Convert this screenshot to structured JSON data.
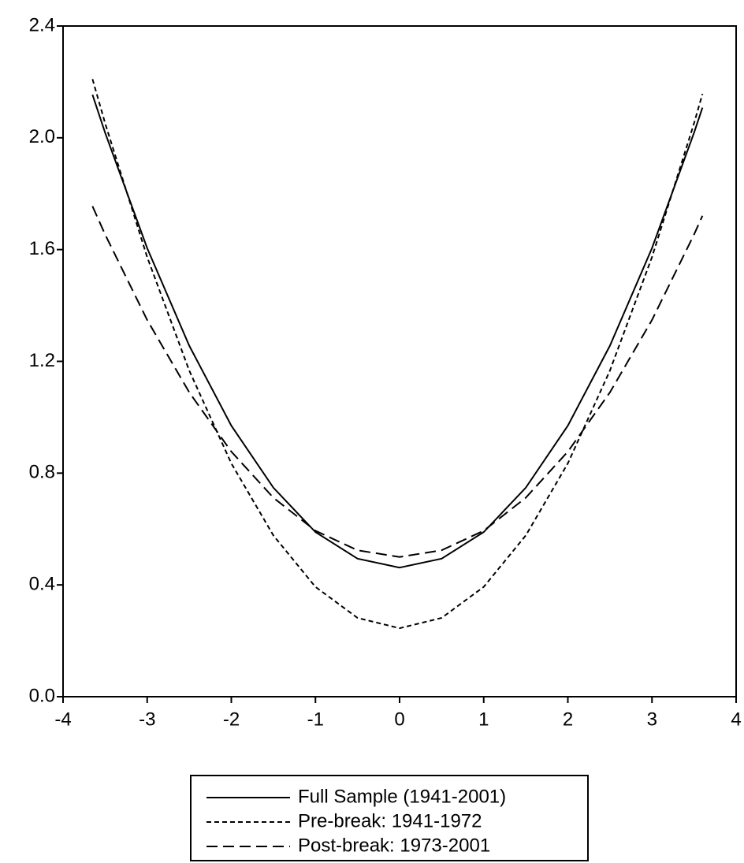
{
  "chart_data": {
    "type": "line",
    "x": [
      -3.65,
      -3.5,
      -3.0,
      -2.5,
      -2.0,
      -1.5,
      -1.0,
      -0.5,
      0,
      0.5,
      1.0,
      1.5,
      2.0,
      2.5,
      3.0,
      3.5,
      3.6
    ],
    "series": [
      {
        "name": "Full Sample (1941-2001)",
        "color": "#000000",
        "dash": "solid",
        "values": [
          2.154,
          2.018,
          1.605,
          1.256,
          0.97,
          0.748,
          0.589,
          0.494,
          0.462,
          0.494,
          0.589,
          0.748,
          0.97,
          1.256,
          1.605,
          2.018,
          2.108
        ]
      },
      {
        "name": "Pre-break: 1941-1972",
        "color": "#000000",
        "dash": "short",
        "values": [
          2.21,
          2.052,
          1.573,
          1.167,
          0.835,
          0.577,
          0.393,
          0.282,
          0.245,
          0.282,
          0.393,
          0.577,
          0.835,
          1.167,
          1.573,
          2.052,
          2.157
        ]
      },
      {
        "name": "Post-break: 1973-2001",
        "color": "#000000",
        "dash": "long",
        "values": [
          1.755,
          1.654,
          1.348,
          1.089,
          0.877,
          0.712,
          0.594,
          0.524,
          0.5,
          0.524,
          0.594,
          0.712,
          0.877,
          1.089,
          1.348,
          1.654,
          1.721
        ]
      }
    ],
    "xlim": [
      -4,
      4
    ],
    "xticks": [
      -4,
      -3,
      -2,
      -1,
      0,
      1,
      2,
      3,
      4
    ],
    "ylim": [
      0,
      2.4
    ],
    "yticks": [
      {
        "value": 0,
        "label": "0.0"
      },
      0.4,
      0.8,
      1.2,
      1.6,
      {
        "value": 2,
        "label": "2.0"
      },
      2.4
    ],
    "grid": false,
    "legend": "bottom"
  }
}
